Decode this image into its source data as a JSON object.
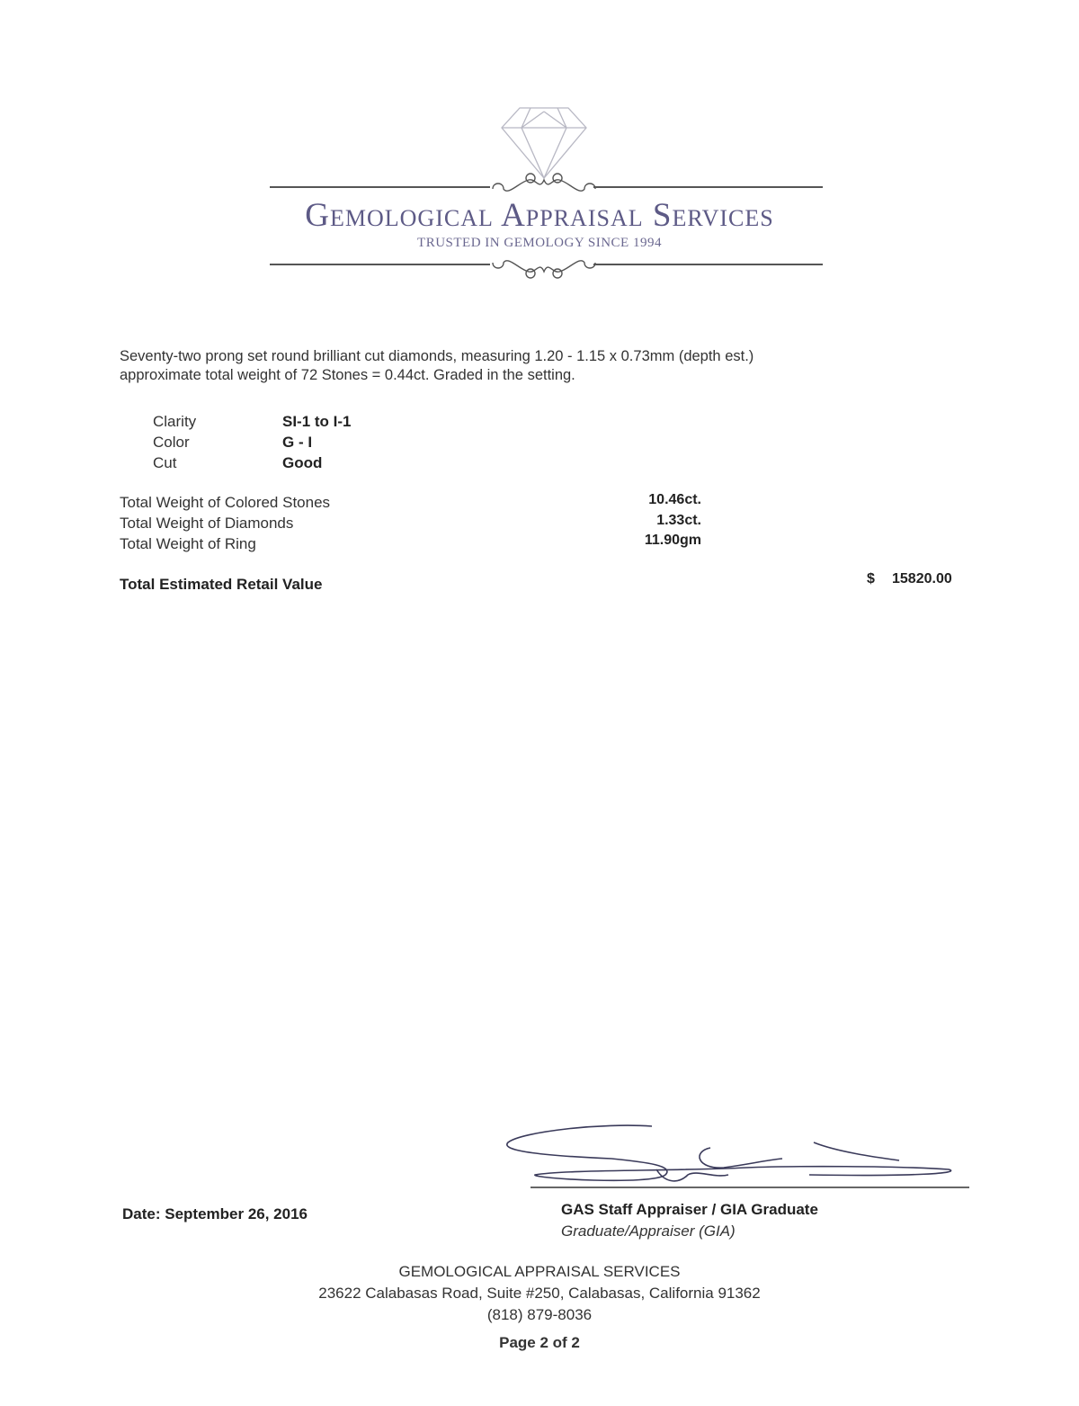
{
  "logo": {
    "title": "Gemological Appraisal Services",
    "tagline": "TRUSTED IN GEMOLOGY SINCE 1994",
    "color": "#5d5a86"
  },
  "description": {
    "line1": "Seventy-two prong set round brilliant cut diamonds, measuring 1.20 - 1.15 x 0.73mm (depth est.)",
    "line2": "approximate total weight of 72 Stones = 0.44ct. Graded in the setting."
  },
  "grading": [
    {
      "label": "Clarity",
      "value": "SI-1 to I-1"
    },
    {
      "label": "Color",
      "value": "G - I"
    },
    {
      "label": "Cut",
      "value": "Good"
    }
  ],
  "weights": [
    {
      "label": "Total Weight of Colored Stones",
      "value": "10.46ct."
    },
    {
      "label": "Total Weight of Diamonds",
      "value": "1.33ct."
    },
    {
      "label": "Total Weight of Ring",
      "value": "11.90gm"
    }
  ],
  "retail": {
    "label": "Total Estimated Retail Value",
    "currency": "$",
    "amount": "15820.00"
  },
  "date": "Date: September 26, 2016",
  "appraiser": {
    "title": "GAS Staff Appraiser / GIA Graduate",
    "subtitle": "Graduate/Appraiser (GIA)"
  },
  "footer": {
    "company": "GEMOLOGICAL APPRAISAL SERVICES",
    "address": "23622 Calabasas Road, Suite #250, Calabasas, California 91362",
    "phone": "(818) 879-8036",
    "page": "Page 2 of 2"
  }
}
